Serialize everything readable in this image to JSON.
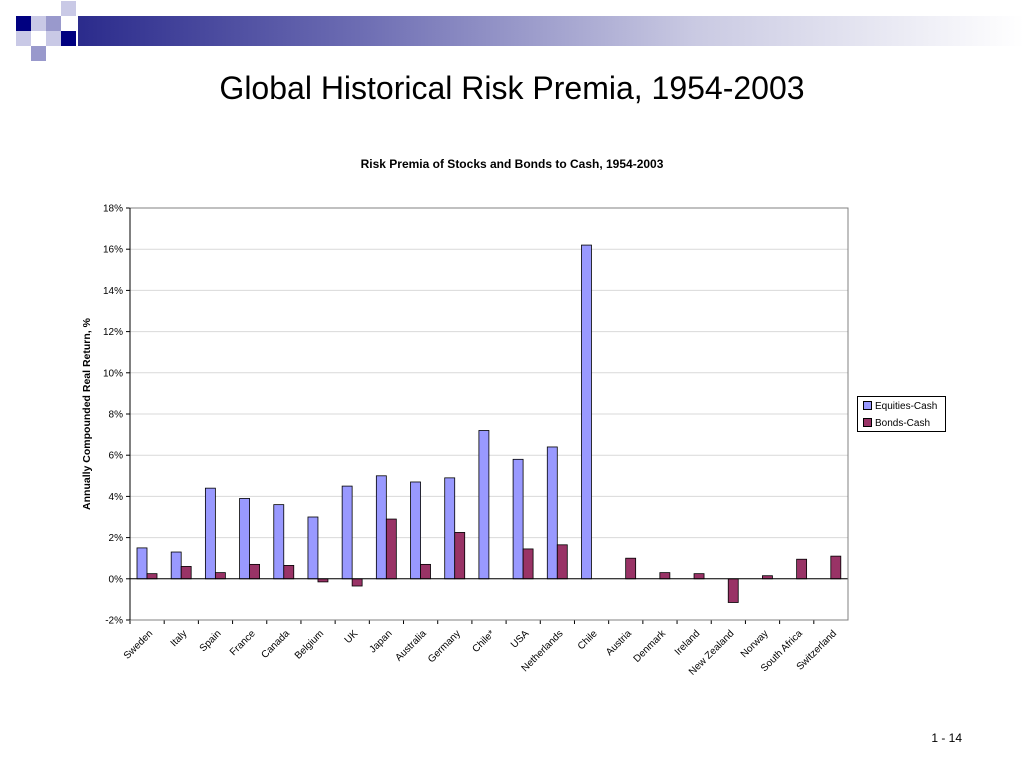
{
  "slide": {
    "title": "Global Historical Risk Premia, 1954-2003",
    "page_number": "1 - 14"
  },
  "colors": {
    "equities": "#9999ff",
    "bonds": "#993366",
    "deco_dark": "#000080",
    "deco_light": "#9999cc"
  },
  "chart_data": {
    "type": "bar",
    "title": "Risk Premia of Stocks and Bonds to Cash, 1954-2003",
    "xlabel": "",
    "ylabel": "Annually Compounded Real Return, %",
    "ylim": [
      -2,
      18
    ],
    "yticks": [
      -2,
      0,
      2,
      4,
      6,
      8,
      10,
      12,
      14,
      16,
      18
    ],
    "ytick_labels": [
      "-2%",
      "0%",
      "2%",
      "4%",
      "6%",
      "8%",
      "10%",
      "12%",
      "14%",
      "16%",
      "18%"
    ],
    "grid": true,
    "legend_position": "right",
    "categories": [
      "Sweden",
      "Italy",
      "Spain",
      "France",
      "Canada",
      "Belgium",
      "UK",
      "Japan",
      "Australia",
      "Germany",
      "Chile*",
      "USA",
      "Netherlands",
      "Chile",
      "Austria",
      "Denmark",
      "Ireland",
      "New Zealand",
      "Norway",
      "South Africa",
      "Switzerland"
    ],
    "series": [
      {
        "name": "Equities-Cash",
        "values": [
          1.5,
          1.3,
          4.4,
          3.9,
          3.6,
          3.0,
          4.5,
          5.0,
          4.7,
          4.9,
          7.2,
          5.8,
          6.4,
          16.2,
          null,
          null,
          null,
          null,
          null,
          null,
          null
        ]
      },
      {
        "name": "Bonds-Cash",
        "values": [
          0.25,
          0.6,
          0.3,
          0.7,
          0.65,
          -0.15,
          -0.35,
          2.9,
          0.7,
          2.25,
          null,
          1.45,
          1.65,
          null,
          1.0,
          0.3,
          0.25,
          -1.15,
          0.15,
          0.95,
          1.1
        ]
      }
    ]
  }
}
